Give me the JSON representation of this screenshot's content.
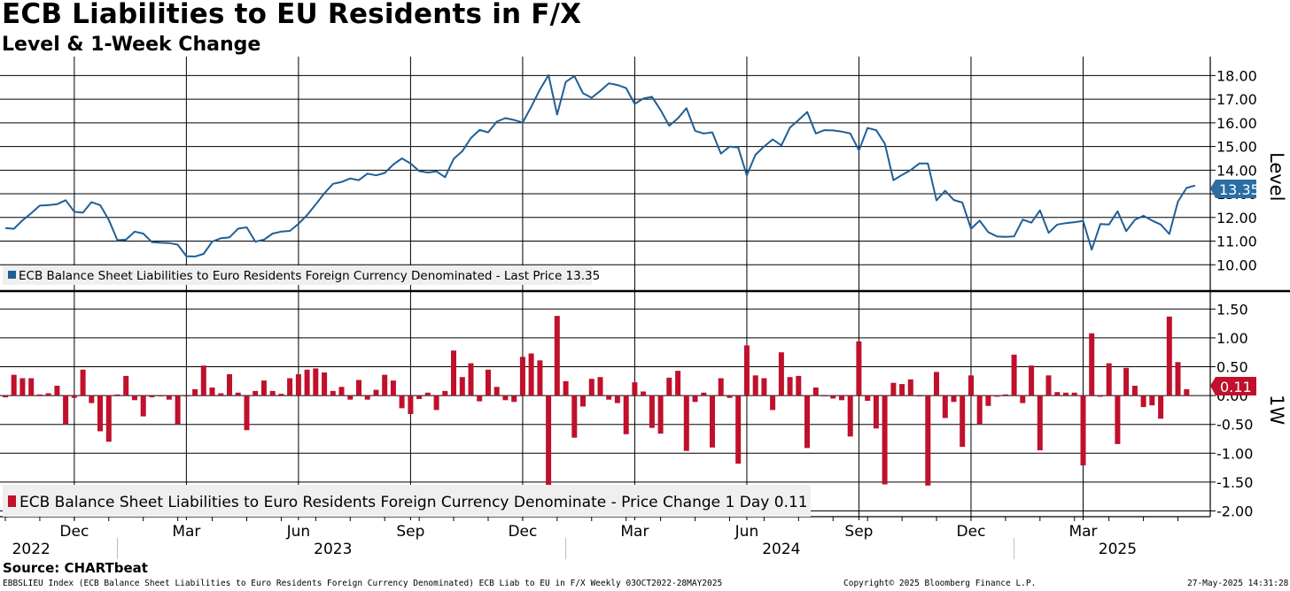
{
  "title": "ECB Liabilities to EU Residents in F/X",
  "subtitle": "Level & 1-Week Change",
  "source": "Source: CHARTbeat",
  "footer": {
    "left": "EBBSLIEU Index (ECB Balance Sheet Liabilities to Euro Residents Foreign Currency Denominated) ECB Liab to EU in F/X  Weekly 03OCT2022-28MAY2025",
    "center": "Copyright© 2025 Bloomberg Finance L.P.",
    "right": "27-May-2025 14:31:28"
  },
  "colors": {
    "level": "#1f5f96",
    "change": "#c0102c",
    "grid": "#000000",
    "badge_level": "#2b6ea3",
    "badge_change": "#c0102c",
    "legend_bg": "#efefef"
  },
  "chart_data": [
    {
      "type": "line",
      "title": "Level",
      "ylabel": "Level",
      "ylim": [
        9.0,
        18.8
      ],
      "yticks": [
        "10.00",
        "11.00",
        "12.00",
        "13.00",
        "14.00",
        "15.00",
        "16.00",
        "17.00",
        "18.00"
      ],
      "ytick_values": [
        10,
        11,
        12,
        13,
        14,
        15,
        16,
        17,
        18
      ],
      "legend": "ECB Balance Sheet Liabilities to Euro Residents Foreign Currency Denominated - Last Price 13.35",
      "last_label": "13.35",
      "series": [
        {
          "name": "ECB Balance Sheet Liabilities to Euro Residents Foreign Currency Denominated",
          "values": [
            11.55,
            11.52,
            11.88,
            12.18,
            12.5,
            12.52,
            12.56,
            12.73,
            12.24,
            12.2,
            12.65,
            12.52,
            11.9,
            11.04,
            11.06,
            11.4,
            11.32,
            10.96,
            10.93,
            10.92,
            10.85,
            10.36,
            10.35,
            10.46,
            10.98,
            11.12,
            11.16,
            11.53,
            11.58,
            10.98,
            11.06,
            11.32,
            11.4,
            11.43,
            11.73,
            12.1,
            12.55,
            13.02,
            13.42,
            13.5,
            13.65,
            13.58,
            13.85,
            13.78,
            13.88,
            14.24,
            14.5,
            14.28,
            13.96,
            13.9,
            13.95,
            13.7,
            14.48,
            14.8,
            15.36,
            15.7,
            15.6,
            16.05,
            16.2,
            16.12,
            16.01,
            16.68,
            17.41,
            18.02,
            16.35,
            17.73,
            17.98,
            17.25,
            17.06,
            17.35,
            17.67,
            17.6,
            17.47,
            16.8,
            17.03,
            17.1,
            16.54,
            15.88,
            16.19,
            16.62,
            15.66,
            15.55,
            15.6,
            14.7,
            15.0,
            14.96,
            13.78,
            14.65,
            15.0,
            15.3,
            15.05,
            15.8,
            16.12,
            16.46,
            15.55,
            15.69,
            15.68,
            15.63,
            15.55,
            14.84,
            15.78,
            15.69,
            15.12,
            13.58,
            13.8,
            14.0,
            14.28,
            14.28,
            12.72,
            13.13,
            12.74,
            12.63,
            11.52,
            11.87,
            11.38,
            11.2,
            11.18,
            11.2,
            11.91,
            11.78,
            12.3,
            11.35,
            11.7,
            11.76,
            11.8,
            11.85,
            10.64,
            11.72,
            11.7,
            12.26,
            11.42,
            11.9,
            12.07,
            11.87,
            11.7,
            11.3,
            12.67,
            13.25,
            13.35
          ]
        }
      ]
    },
    {
      "type": "bar",
      "title": "1W",
      "ylabel": "1W",
      "ylim": [
        -2.1,
        1.75
      ],
      "yticks": [
        "1.50",
        "1.00",
        "0.50",
        "0.00",
        "-0.50",
        "-1.00",
        "-1.50",
        "-2.00"
      ],
      "ytick_values": [
        1.5,
        1.0,
        0.5,
        0.0,
        -0.5,
        -1.0,
        -1.5,
        -2.0
      ],
      "legend": "ECB Balance Sheet Liabilities to Euro Residents Foreign Currency Denominate - Price Change 1 Day 0.11",
      "last_label": "0.11",
      "series": [
        {
          "name": "ECB Balance Sheet Liabilities to Euro Residents Foreign Currency Denominate - Price Change 1 Day",
          "values": [
            -0.03,
            0.36,
            0.3,
            0.3,
            0.02,
            0.04,
            0.17,
            -0.49,
            -0.04,
            0.45,
            -0.13,
            -0.62,
            -0.8,
            0.02,
            0.34,
            -0.08,
            -0.36,
            -0.03,
            -0.01,
            -0.07,
            -0.49,
            -0.01,
            0.11,
            0.52,
            0.14,
            0.04,
            0.37,
            0.05,
            -0.6,
            0.08,
            0.26,
            0.08,
            0.03,
            0.3,
            0.37,
            0.45,
            0.47,
            0.4,
            0.08,
            0.15,
            -0.07,
            0.27,
            -0.07,
            0.1,
            0.36,
            0.26,
            -0.22,
            -0.32,
            -0.06,
            0.05,
            -0.25,
            0.08,
            0.78,
            0.32,
            0.56,
            -0.1,
            0.45,
            0.15,
            -0.08,
            -0.11,
            0.67,
            0.73,
            0.61,
            -1.67,
            1.38,
            0.25,
            -0.73,
            -0.19,
            0.29,
            0.32,
            -0.07,
            -0.13,
            -0.67,
            0.23,
            0.07,
            -0.56,
            -0.66,
            0.31,
            0.43,
            -0.96,
            -0.11,
            0.05,
            -0.9,
            0.3,
            -0.04,
            -1.18,
            0.87,
            0.35,
            0.3,
            -0.25,
            0.75,
            0.32,
            0.34,
            -0.91,
            0.14,
            -0.01,
            -0.05,
            -0.08,
            -0.71,
            0.94,
            -0.09,
            -0.57,
            -1.54,
            0.22,
            0.2,
            0.28,
            0.0,
            -1.56,
            0.41,
            -0.39,
            -0.11,
            -0.89,
            0.35,
            -0.49,
            -0.18,
            -0.02,
            0.02,
            0.71,
            -0.13,
            0.52,
            -0.95,
            0.35,
            0.06,
            0.05,
            0.05,
            -1.21,
            1.08,
            -0.02,
            0.56,
            -0.84,
            0.48,
            0.17,
            -0.2,
            -0.17,
            -0.4,
            1.37,
            0.58,
            0.11
          ]
        }
      ]
    }
  ],
  "x_axis": {
    "month_labels": [
      {
        "label": "Dec",
        "week": 8
      },
      {
        "label": "Mar",
        "week": 21
      },
      {
        "label": "Jun",
        "week": 34
      },
      {
        "label": "Sep",
        "week": 47
      },
      {
        "label": "Dec",
        "week": 60
      },
      {
        "label": "Mar",
        "week": 73
      },
      {
        "label": "Jun",
        "week": 86
      },
      {
        "label": "Sep",
        "week": 99
      },
      {
        "label": "Dec",
        "week": 112
      },
      {
        "label": "Mar",
        "week": 125
      }
    ],
    "year_labels": [
      {
        "label": "2022",
        "week": 3
      },
      {
        "label": "2023",
        "week": 38
      },
      {
        "label": "2024",
        "week": 90
      },
      {
        "label": "2025",
        "week": 129
      }
    ],
    "year_dividers": [
      13,
      65,
      117
    ]
  }
}
